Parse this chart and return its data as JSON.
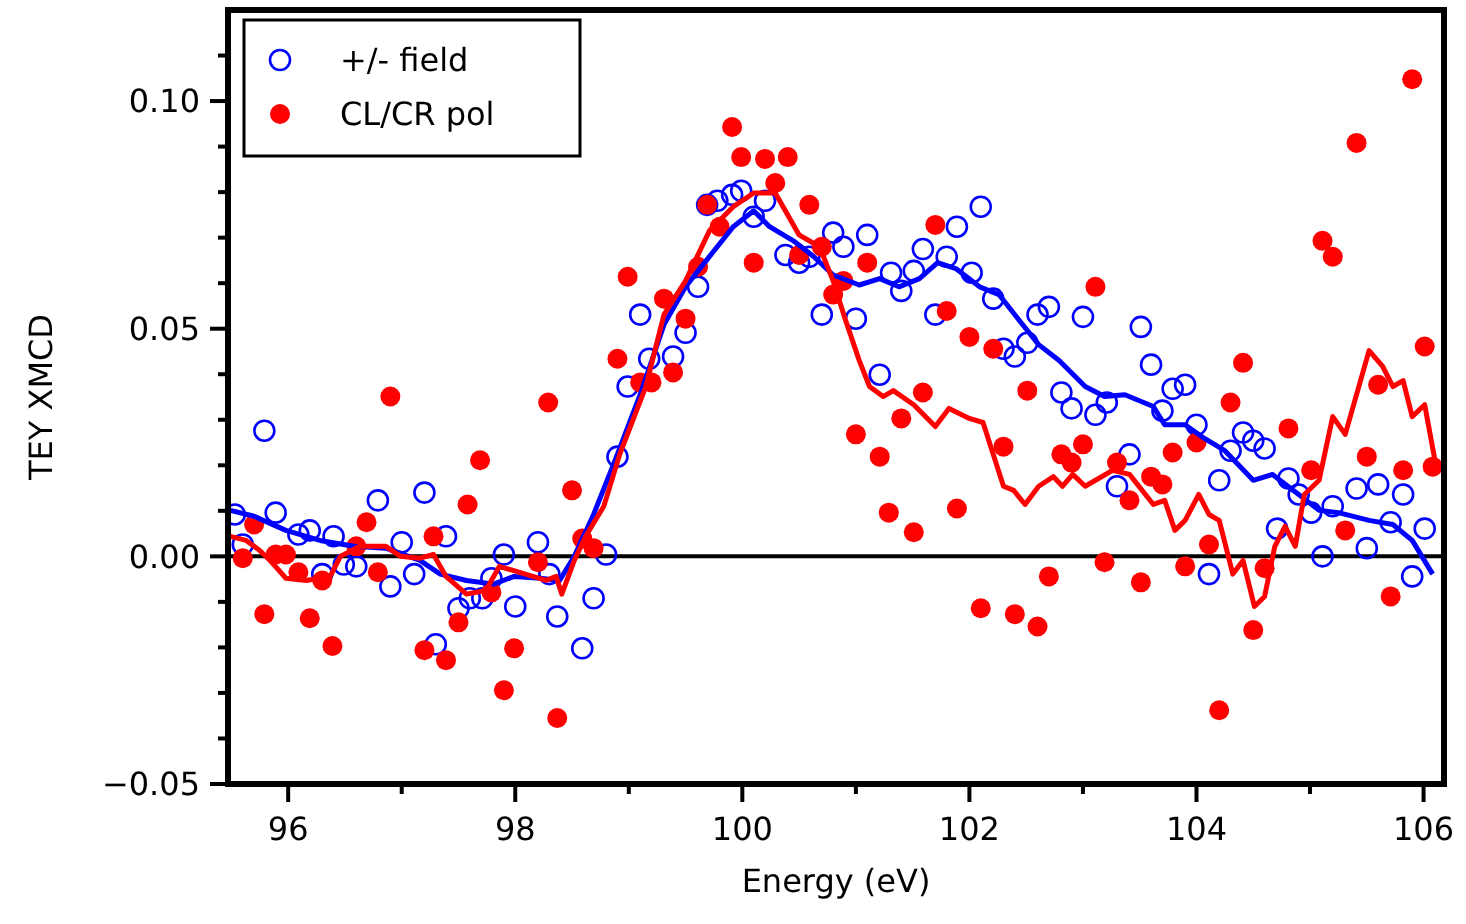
{
  "chart_data": {
    "type": "scatter",
    "xlabel": "Energy (eV)",
    "ylabel": "TEY XMCD",
    "xlim": [
      95.47,
      106.18
    ],
    "ylim": [
      -0.05,
      0.12
    ],
    "xticks": [
      {
        "value": 96,
        "label": "96"
      },
      {
        "value": 97,
        "label": null
      },
      {
        "value": 98,
        "label": "98"
      },
      {
        "value": 99,
        "label": null
      },
      {
        "value": 100,
        "label": "100"
      },
      {
        "value": 101,
        "label": null
      },
      {
        "value": 102,
        "label": "102"
      },
      {
        "value": 103,
        "label": null
      },
      {
        "value": 104,
        "label": "104"
      },
      {
        "value": 105,
        "label": null
      },
      {
        "value": 106,
        "label": "106"
      }
    ],
    "yticks": [
      {
        "value": -0.05,
        "label": "−0.05"
      },
      {
        "value": -0.04,
        "label": null
      },
      {
        "value": -0.03,
        "label": null
      },
      {
        "value": -0.02,
        "label": null
      },
      {
        "value": -0.01,
        "label": null
      },
      {
        "value": 0,
        "label": "0.00"
      },
      {
        "value": 0.01,
        "label": null
      },
      {
        "value": 0.02,
        "label": null
      },
      {
        "value": 0.03,
        "label": null
      },
      {
        "value": 0.04,
        "label": null
      },
      {
        "value": 0.05,
        "label": "0.05"
      },
      {
        "value": 0.06,
        "label": null
      },
      {
        "value": 0.07,
        "label": null
      },
      {
        "value": 0.08,
        "label": null
      },
      {
        "value": 0.09,
        "label": null
      },
      {
        "value": 0.1,
        "label": "0.10"
      },
      {
        "value": 0.11,
        "label": null
      }
    ],
    "grid": false,
    "legend": "top left",
    "ref_lines": [
      {
        "axis": "y",
        "value": 0,
        "color": "#000000"
      }
    ],
    "series": [
      {
        "name": "+/- field",
        "color": "#0000ff",
        "marker": "circle",
        "x": [
          95.79,
          95.53,
          95.89,
          95.6,
          96.09,
          96.19,
          96.4,
          96.3,
          96.49,
          96.6,
          96.79,
          96.9,
          97.0,
          97.11,
          97.2,
          97.39,
          97.5,
          97.3,
          97.6,
          97.71,
          97.79,
          97.9,
          98.0,
          98.2,
          98.3,
          98.37,
          98.59,
          98.69,
          98.8,
          98.9,
          98.99,
          99.1,
          99.18,
          99.39,
          99.5,
          99.61,
          99.69,
          99.78,
          99.91,
          99.99,
          100.1,
          100.2,
          100.38,
          100.5,
          100.59,
          100.7,
          100.8,
          100.89,
          101.0,
          101.1,
          101.21,
          101.31,
          101.4,
          101.51,
          101.59,
          101.7,
          101.8,
          101.89,
          102.02,
          102.1,
          102.21,
          102.3,
          102.4,
          102.51,
          102.6,
          102.7,
          102.81,
          102.9,
          103.0,
          103.11,
          103.21,
          103.3,
          103.41,
          103.51,
          103.6,
          103.7,
          103.79,
          103.9,
          104.0,
          104.11,
          104.2,
          104.3,
          104.41,
          104.5,
          104.6,
          104.71,
          104.81,
          104.9,
          105.01,
          105.11,
          105.2,
          105.41,
          105.5,
          105.6,
          105.71,
          105.82,
          105.9,
          106.01
        ],
        "values": [
          0.0276,
          0.0092,
          0.0096,
          0.0026,
          0.0048,
          0.0057,
          0.0044,
          -0.0039,
          -0.0018,
          -0.0022,
          0.0123,
          -0.0066,
          0.0031,
          -0.0039,
          0.014,
          0.0044,
          -0.0114,
          -0.0193,
          -0.0092,
          -0.0092,
          -0.0048,
          0.0004,
          -0.011,
          0.0031,
          -0.0039,
          -0.0132,
          -0.0202,
          -0.0092,
          0.0004,
          0.0219,
          0.0373,
          0.0531,
          0.0434,
          0.0439,
          0.0491,
          0.0592,
          0.0772,
          0.0781,
          0.0794,
          0.0803,
          0.0746,
          0.0781,
          0.0662,
          0.0645,
          0.0658,
          0.0531,
          0.0711,
          0.068,
          0.0522,
          0.0706,
          0.0399,
          0.0623,
          0.0583,
          0.0627,
          0.0675,
          0.0531,
          0.0658,
          0.0724,
          0.0623,
          0.0768,
          0.0566,
          0.0456,
          0.0439,
          0.0469,
          0.0531,
          0.0548,
          0.036,
          0.0325,
          0.0526,
          0.0311,
          0.0338,
          0.0154,
          0.0224,
          0.0504,
          0.0421,
          0.032,
          0.0368,
          0.0377,
          0.0289,
          -0.0039,
          0.0167,
          0.0232,
          0.0272,
          0.0254,
          0.0237,
          0.0061,
          0.0171,
          0.0136,
          0.0096,
          0,
          0.011,
          0.0149,
          0.0018,
          0.0158,
          0.0075,
          0.0136,
          -0.0044,
          0.0061
        ]
      },
      {
        "name": "CL/CR pol",
        "color": "#ff0000",
        "marker": "circle",
        "x": [
          95.6,
          95.7,
          95.79,
          95.89,
          95.98,
          96.09,
          96.19,
          96.3,
          96.39,
          96.6,
          96.69,
          96.79,
          96.9,
          97.2,
          97.28,
          97.39,
          97.5,
          97.58,
          97.69,
          97.79,
          97.9,
          97.99,
          98.2,
          98.29,
          98.37,
          98.5,
          98.59,
          98.69,
          98.9,
          98.99,
          99.1,
          99.2,
          99.31,
          99.39,
          99.5,
          99.61,
          99.69,
          99.8,
          99.91,
          99.99,
          100.1,
          100.2,
          100.29,
          100.4,
          100.5,
          100.59,
          100.7,
          100.8,
          100.89,
          101.0,
          101.1,
          101.21,
          101.29,
          101.4,
          101.51,
          101.59,
          101.7,
          101.8,
          101.89,
          102.0,
          102.1,
          102.21,
          102.3,
          102.4,
          102.51,
          102.6,
          102.7,
          102.81,
          102.9,
          103.0,
          103.11,
          103.19,
          103.3,
          103.41,
          103.51,
          103.6,
          103.7,
          103.79,
          103.9,
          104.0,
          104.11,
          104.2,
          104.3,
          104.41,
          104.5,
          104.6,
          104.81,
          105.01,
          105.11,
          105.2,
          105.31,
          105.41,
          105.5,
          105.6,
          105.71,
          105.82,
          105.9,
          106.01,
          106.08
        ],
        "values": [
          -0.0004,
          0.007,
          -0.0127,
          0.0004,
          0.0004,
          -0.0035,
          -0.0136,
          -0.0053,
          -0.0197,
          0.0022,
          0.0075,
          -0.0035,
          0.0351,
          -0.0206,
          0.0044,
          -0.0228,
          -0.0145,
          0.0114,
          0.0211,
          -0.0079,
          -0.0294,
          -0.0202,
          -0.0013,
          0.0338,
          -0.0355,
          0.0145,
          0.0039,
          0.0018,
          0.0434,
          0.0614,
          0.0382,
          0.0382,
          0.0566,
          0.0404,
          0.0522,
          0.0636,
          0.0772,
          0.0724,
          0.0943,
          0.0877,
          0.0645,
          0.0873,
          0.082,
          0.0877,
          0.0662,
          0.0772,
          0.068,
          0.0575,
          0.0605,
          0.0268,
          0.0645,
          0.0219,
          0.0096,
          0.0303,
          0.0053,
          0.036,
          0.0728,
          0.0539,
          0.0105,
          0.0482,
          -0.0114,
          0.0456,
          0.0241,
          -0.0127,
          0.0364,
          -0.0154,
          -0.0044,
          0.0224,
          0.0206,
          0.0246,
          0.0592,
          -0.0013,
          0.0206,
          0.0123,
          -0.0057,
          0.0175,
          0.0158,
          0.0228,
          -0.0022,
          0.025,
          0.0026,
          -0.0338,
          0.0338,
          0.0425,
          -0.0162,
          -0.0026,
          0.0281,
          0.0189,
          0.0693,
          0.0658,
          0.0057,
          0.0908,
          0.0219,
          0.0377,
          -0.0088,
          0.0189,
          0.1048,
          0.0461,
          0.0197
        ]
      },
      {
        "type": "line",
        "color": "#0000ff",
        "x": [
          95.49,
          95.7,
          95.98,
          96.28,
          96.58,
          96.86,
          97.16,
          97.34,
          97.57,
          97.81,
          97.99,
          98.22,
          98.39,
          98.52,
          98.69,
          98.88,
          99.1,
          99.31,
          99.5,
          99.68,
          99.92,
          100.1,
          100.24,
          100.45,
          100.63,
          100.8,
          101.03,
          101.21,
          101.38,
          101.56,
          101.72,
          101.88,
          102.09,
          102.26,
          102.44,
          102.61,
          102.79,
          103.02,
          103.19,
          103.37,
          103.62,
          103.72,
          103.9,
          104.07,
          104.25,
          104.5,
          104.67,
          104.9,
          105.08,
          105.25,
          105.52,
          105.73,
          105.9,
          106.08
        ],
        "values": [
          0.0101,
          0.0088,
          0.0057,
          0.0035,
          0.0022,
          0.0018,
          -0.0009,
          -0.0039,
          -0.0053,
          -0.0061,
          -0.0044,
          -0.0048,
          -0.0053,
          0,
          0.0092,
          0.0211,
          0.0355,
          0.0509,
          0.0592,
          0.0649,
          0.0724,
          0.0759,
          0.0724,
          0.0693,
          0.0658,
          0.0618,
          0.0596,
          0.061,
          0.0592,
          0.061,
          0.0645,
          0.0632,
          0.0592,
          0.0575,
          0.0518,
          0.0465,
          0.043,
          0.0373,
          0.0351,
          0.0355,
          0.0329,
          0.0289,
          0.0289,
          0.0259,
          0.0232,
          0.0167,
          0.018,
          0.0136,
          0.0101,
          0.0096,
          0.0079,
          0.007,
          0.0035,
          -0.0039
        ]
      },
      {
        "type": "line",
        "color": "#ff0000",
        "x": [
          95.49,
          95.63,
          95.75,
          95.84,
          95.98,
          96.16,
          96.37,
          96.46,
          96.63,
          96.86,
          96.99,
          97.16,
          97.28,
          97.39,
          97.57,
          97.74,
          97.86,
          98.09,
          98.27,
          98.36,
          98.41,
          98.52,
          98.62,
          98.78,
          98.92,
          99.15,
          99.31,
          99.5,
          99.71,
          99.92,
          100.1,
          100.29,
          100.5,
          100.68,
          100.8,
          100.91,
          101.03,
          101.12,
          101.24,
          101.33,
          101.51,
          101.7,
          101.82,
          102.0,
          102.12,
          102.3,
          102.39,
          102.49,
          102.61,
          102.74,
          102.82,
          102.91,
          103.02,
          103.26,
          103.41,
          103.62,
          103.72,
          103.81,
          103.9,
          104.02,
          104.11,
          104.2,
          104.32,
          104.41,
          104.51,
          104.6,
          104.69,
          104.78,
          104.87,
          104.95,
          105.08,
          105.2,
          105.31,
          105.52,
          105.64,
          105.73,
          105.82,
          105.9,
          106.01,
          106.1
        ],
        "values": [
          0.0044,
          0.0035,
          0.0013,
          -0.0009,
          -0.0048,
          -0.0053,
          -0.0044,
          0,
          0.0022,
          0.0022,
          0,
          -0.0004,
          0.0004,
          -0.0044,
          -0.0083,
          -0.0075,
          -0.0022,
          -0.0039,
          -0.0053,
          -0.0044,
          -0.0083,
          -0.0009,
          0.0044,
          0.011,
          0.0224,
          0.0373,
          0.0531,
          0.0605,
          0.0715,
          0.0768,
          0.0798,
          0.0798,
          0.0706,
          0.068,
          0.0605,
          0.0518,
          0.043,
          0.0373,
          0.0351,
          0.0364,
          0.0333,
          0.0285,
          0.0325,
          0.0303,
          0.0294,
          0.0154,
          0.0145,
          0.0114,
          0.0154,
          0.0175,
          0.0154,
          0.018,
          0.0154,
          0.0189,
          0.018,
          0.0114,
          0.0123,
          0.0057,
          0.0079,
          0.0136,
          0.0092,
          0.0079,
          -0.0039,
          -0.0009,
          -0.011,
          -0.0088,
          0.0022,
          0.0066,
          0.0022,
          0.0136,
          0.0167,
          0.0307,
          0.0268,
          0.0452,
          0.0417,
          0.0373,
          0.0386,
          0.0307,
          0.0333,
          0.0211
        ]
      }
    ]
  }
}
